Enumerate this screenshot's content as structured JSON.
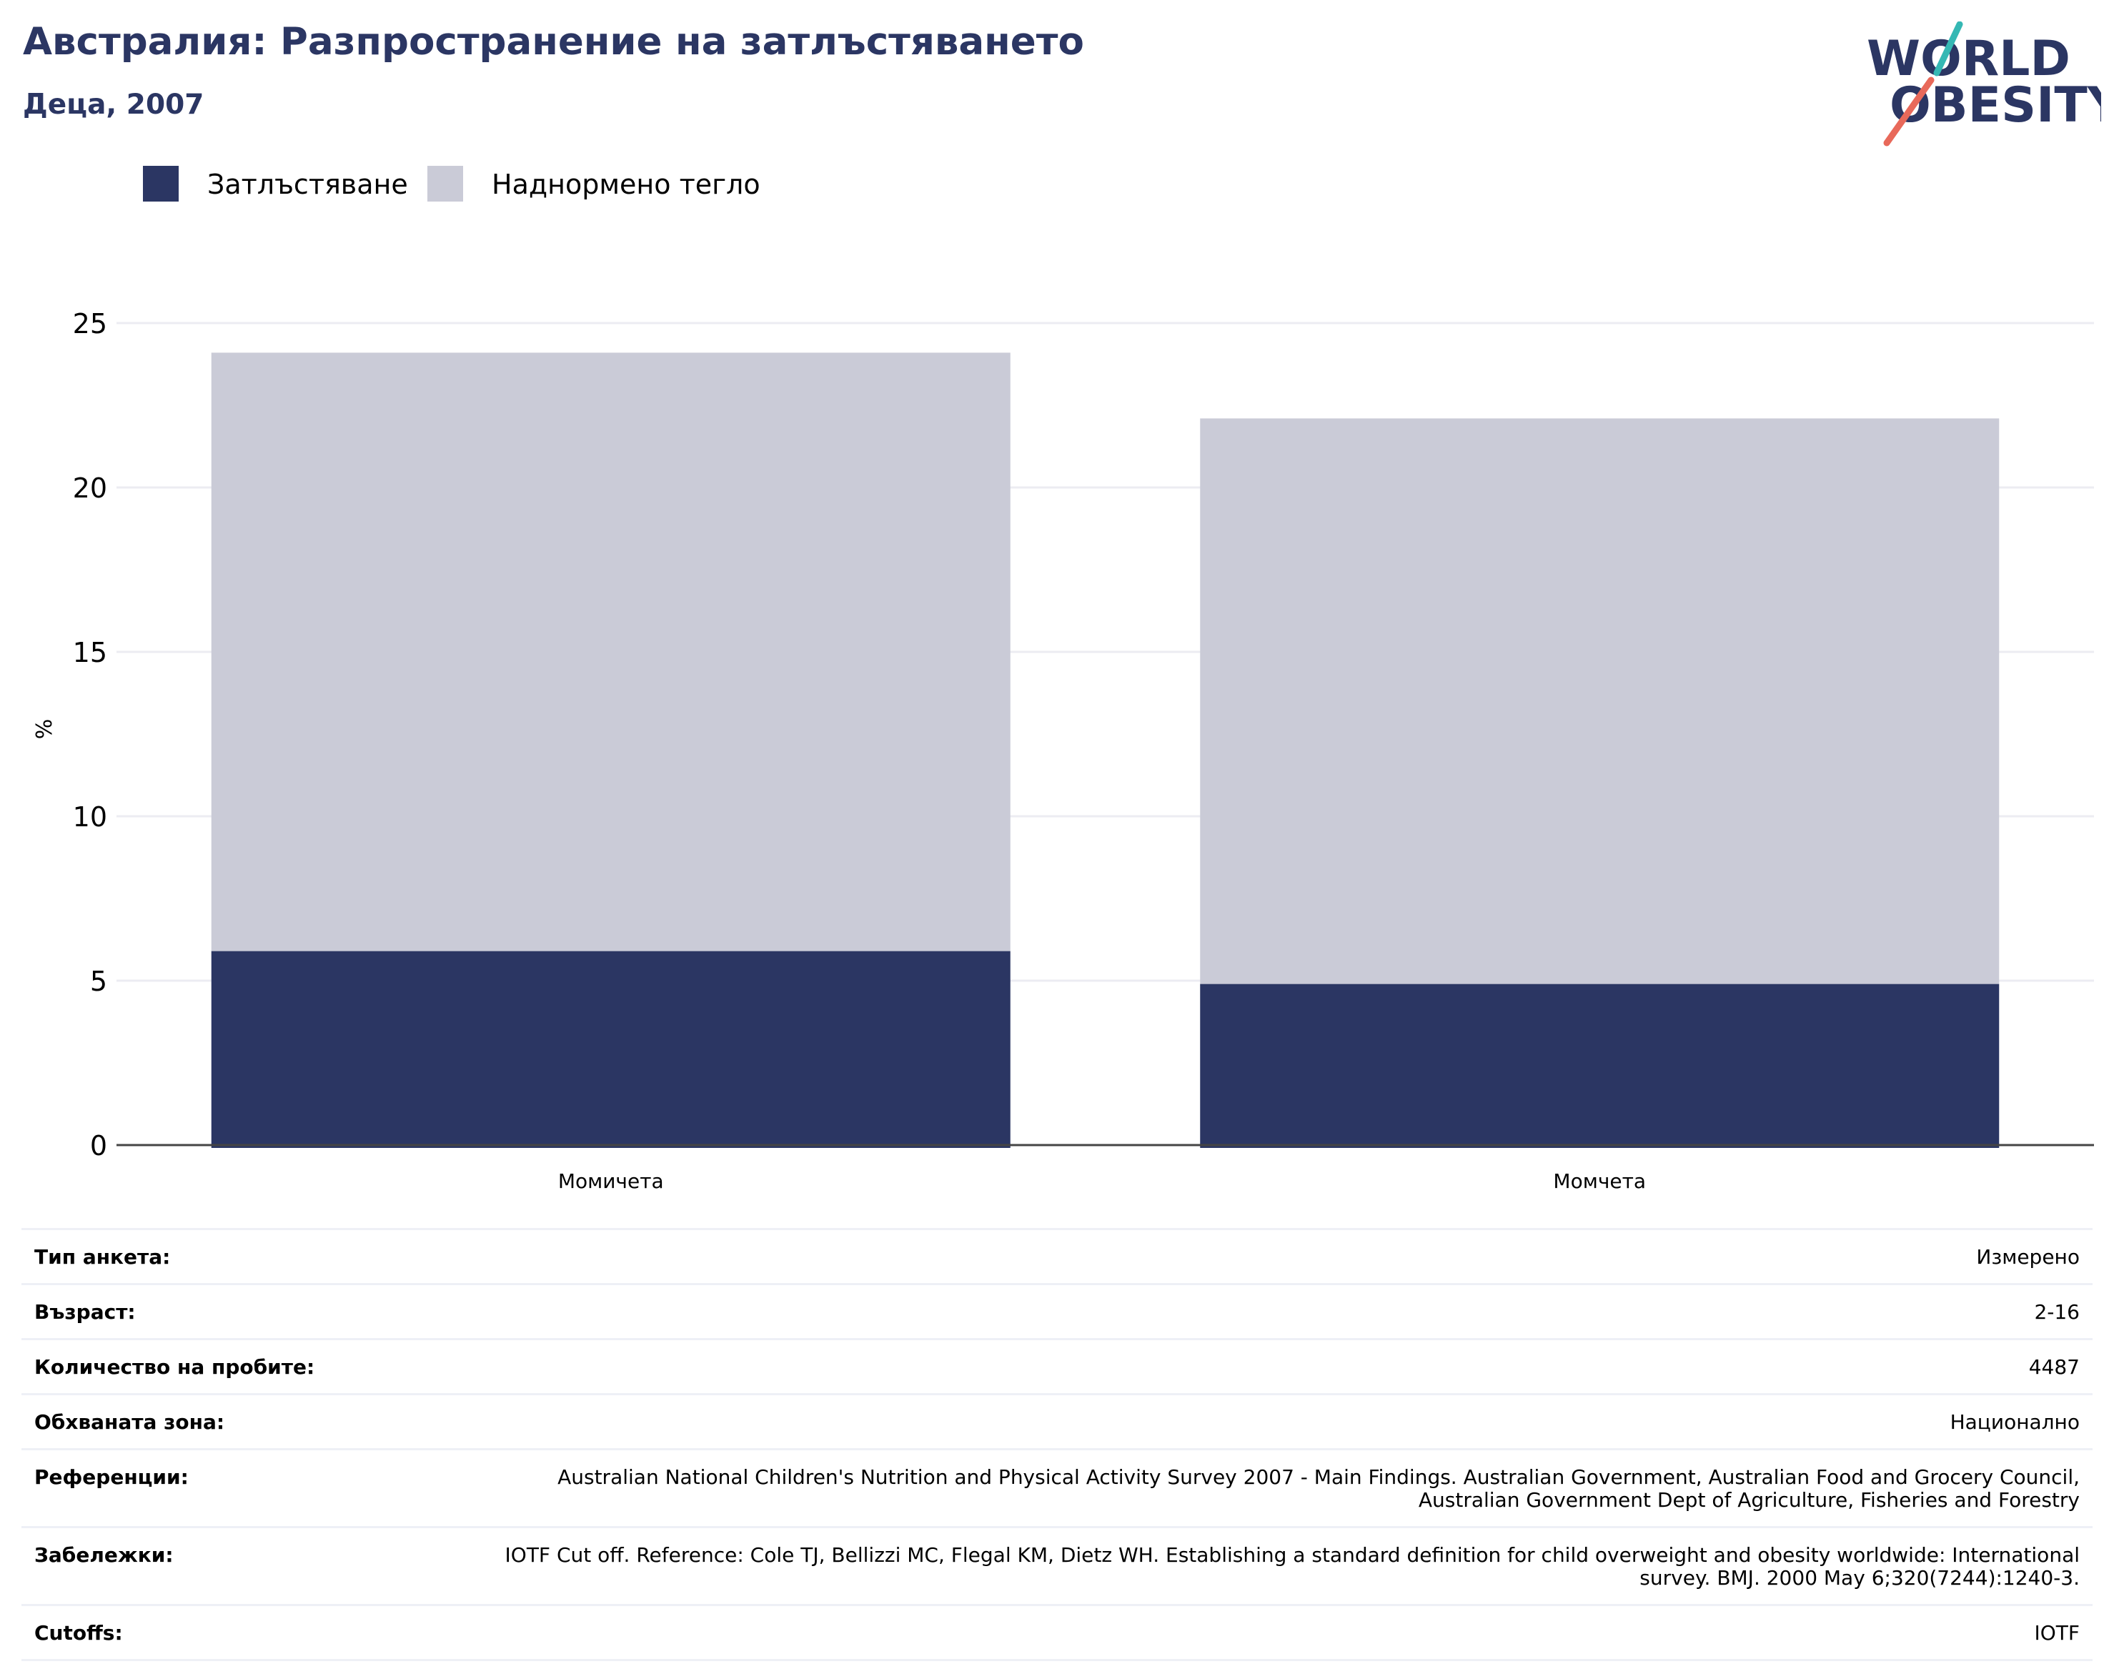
{
  "header": {
    "title": "Австралия: Разпространение на затлъстяването",
    "subtitle": "Деца, 2007"
  },
  "logo": {
    "line1": "WORLD",
    "line2": "OBESITY",
    "slash_colors": [
      "#35b8b4",
      "#e8695a"
    ],
    "text_color": "#2b3663"
  },
  "legend": [
    {
      "label": "Затлъстяване",
      "color": "#2b3663"
    },
    {
      "label": "Наднормено тегло",
      "color": "#cacbd7"
    }
  ],
  "chart_data": {
    "type": "bar",
    "stacked": true,
    "categories": [
      "Момичета",
      "Момчета"
    ],
    "series": [
      {
        "name": "Затлъстяване",
        "values": [
          5.9,
          4.9
        ],
        "color": "#2b3663"
      },
      {
        "name": "Наднормено тегло",
        "values": [
          18.2,
          17.2
        ],
        "color": "#cacbd7"
      }
    ],
    "title": "Австралия: Разпространение на затлъстяването",
    "subtitle": "Деца, 2007",
    "xlabel": "",
    "ylabel": "%",
    "ylim": [
      0,
      25
    ],
    "yticks": [
      0,
      5,
      10,
      15,
      20,
      25
    ],
    "grid": true,
    "legend_position": "top-left"
  },
  "info": [
    {
      "label": "Тип анкета:",
      "value": "Измерено"
    },
    {
      "label": "Възраст:",
      "value": "2-16"
    },
    {
      "label": "Количество на пробите:",
      "value": "4487"
    },
    {
      "label": "Обхваната зона:",
      "value": "Национално"
    },
    {
      "label": "Референции:",
      "value": "Australian National Children's Nutrition and Physical Activity Survey 2007 - Main Findings. Australian Government, Australian Food and Grocery Council, Australian Government Dept of Agriculture, Fisheries and Forestry"
    },
    {
      "label": "Забележки:",
      "value": "IOTF Cut off. Reference: Cole TJ, Bellizzi MC, Flegal KM, Dietz WH. Establishing a standard definition for child overweight and obesity worldwide: International survey. BMJ. 2000 May 6;320(7244):1240-3."
    },
    {
      "label": "Cutoffs:",
      "value": "IOTF"
    }
  ]
}
